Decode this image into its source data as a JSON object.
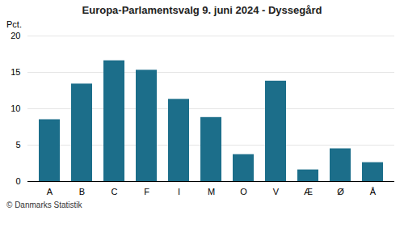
{
  "chart_data": {
    "type": "bar",
    "title": "Europa-Parlamentsvalg 9. juni 2024 - Dyssegård",
    "ylabel": "Pct.",
    "categories": [
      "A",
      "B",
      "C",
      "F",
      "I",
      "M",
      "O",
      "V",
      "Æ",
      "Ø",
      "Å"
    ],
    "values": [
      8.5,
      13.4,
      16.6,
      15.3,
      11.3,
      8.8,
      3.7,
      13.8,
      1.6,
      4.5,
      2.6
    ],
    "color": "#1c6e8a",
    "ylim": [
      0,
      20
    ],
    "yticks": [
      0,
      5,
      10,
      15,
      20
    ],
    "grid": true,
    "footnote": "© Danmarks Statistik"
  }
}
